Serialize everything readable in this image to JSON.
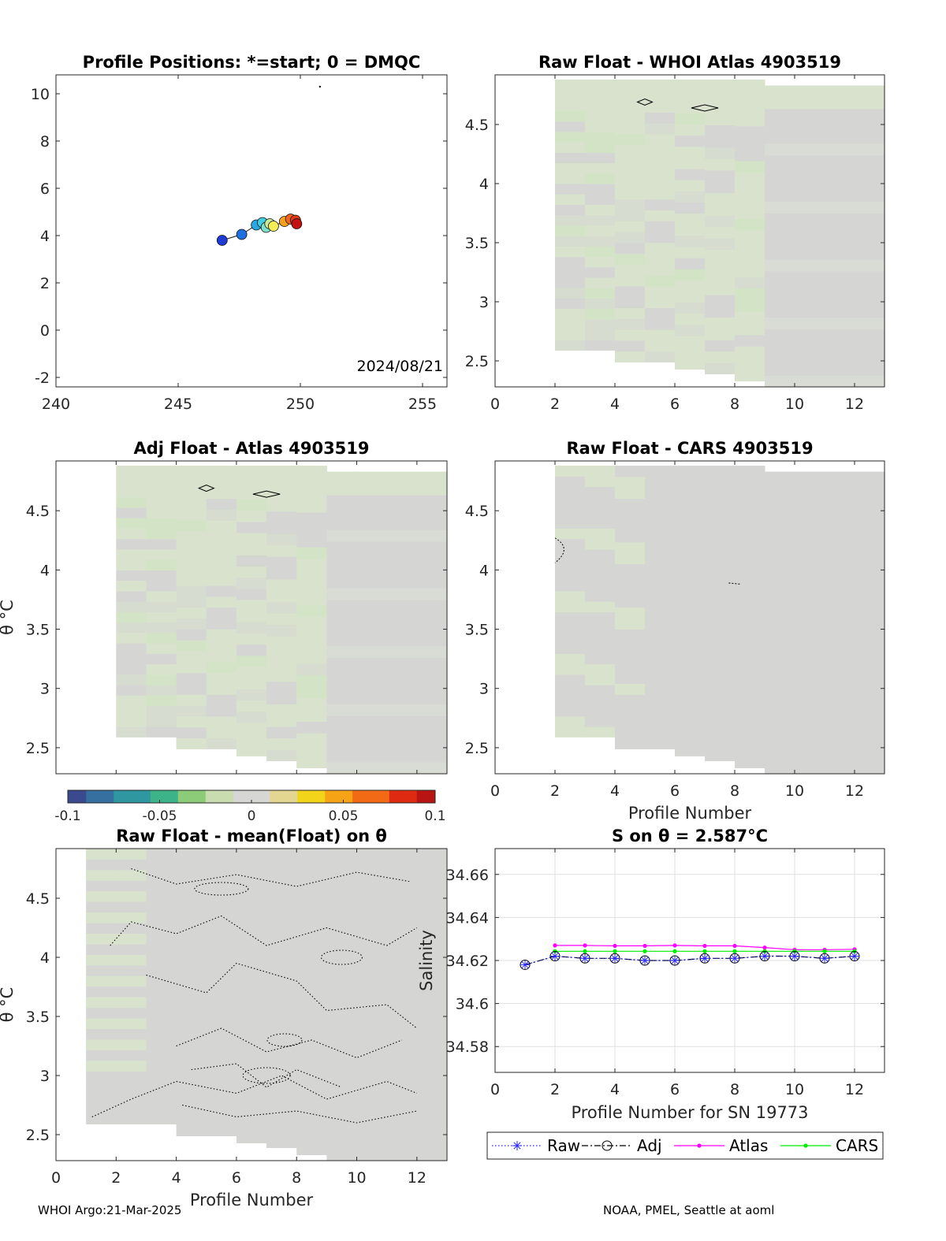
{
  "footer": {
    "left": "WHOI Argo:21-Mar-2025",
    "right": "NOAA, PMEL, Seattle at aoml"
  },
  "colors": {
    "field_gray": "#d5d6d4",
    "field_green": "#d9e2cd",
    "field_green2": "#d3e4c6",
    "atlas_line": "#ff00ff",
    "cars_line": "#00ee00",
    "raw_marker": "#2a2aff"
  },
  "chart_data": [
    {
      "id": "positions",
      "type": "scatter",
      "title": "Profile Positions: *=start; 0 = DMQC",
      "xlim": [
        240,
        256
      ],
      "ylim": [
        -2.4,
        10.8
      ],
      "xticks": [
        "240",
        "245",
        "250",
        "255"
      ],
      "yticks": [
        "-2",
        "0",
        "2",
        "4",
        "6",
        "8",
        "10"
      ],
      "annotation": "2024/08/21",
      "points": [
        {
          "lon": 246.8,
          "lat": 3.8,
          "color": "#1f3bd6"
        },
        {
          "lon": 247.6,
          "lat": 4.05,
          "color": "#1f6fe0"
        },
        {
          "lon": 248.2,
          "lat": 4.45,
          "color": "#27a9e8"
        },
        {
          "lon": 248.45,
          "lat": 4.55,
          "color": "#3fd0e6"
        },
        {
          "lon": 248.6,
          "lat": 4.35,
          "color": "#7ee0cf"
        },
        {
          "lon": 248.75,
          "lat": 4.5,
          "color": "#c9e89a"
        },
        {
          "lon": 248.9,
          "lat": 4.4,
          "color": "#f3ee58"
        },
        {
          "lon": 249.35,
          "lat": 4.6,
          "color": "#f7a21c"
        },
        {
          "lon": 249.6,
          "lat": 4.7,
          "color": "#f2641c"
        },
        {
          "lon": 249.8,
          "lat": 4.65,
          "color": "#e23a16"
        },
        {
          "lon": 249.85,
          "lat": 4.5,
          "color": "#c41010"
        }
      ],
      "grid": false
    },
    {
      "id": "raw-whoi",
      "type": "heatmap",
      "title": "Raw Float - WHOI Atlas  4903519",
      "xlim": [
        0,
        13
      ],
      "ylim": [
        2.28,
        4.92
      ],
      "xticks": [
        "0",
        "2",
        "4",
        "6",
        "8",
        "10",
        "12"
      ],
      "yticks": [
        "2.5",
        "3",
        "3.5",
        "4",
        "4.5"
      ],
      "contours": [
        {
          "x": 5,
          "y": 4.69,
          "w": 0.5
        },
        {
          "x": 7,
          "y": 4.64,
          "w": 0.9
        }
      ]
    },
    {
      "id": "adj-atlas",
      "type": "heatmap",
      "title": "Adj Float - Atlas  4903519",
      "ylabel": "θ °C",
      "xlim": [
        0,
        13
      ],
      "ylim": [
        2.28,
        4.92
      ],
      "yticks": [
        "2.5",
        "3",
        "3.5",
        "4",
        "4.5"
      ],
      "contours": [
        {
          "x": 5,
          "y": 4.69,
          "w": 0.5
        },
        {
          "x": 7,
          "y": 4.64,
          "w": 0.9
        }
      ]
    },
    {
      "id": "raw-cars",
      "type": "heatmap",
      "title": "Raw Float - CARS  4903519",
      "xlabel": "Profile Number",
      "xlim": [
        0,
        13
      ],
      "ylim": [
        2.28,
        4.92
      ],
      "xticks": [
        "0",
        "2",
        "4",
        "6",
        "8",
        "10",
        "12"
      ],
      "yticks": [
        "2.5",
        "3",
        "3.5",
        "4",
        "4.5"
      ]
    },
    {
      "id": "colorbar",
      "type": "colorbar",
      "range": [
        -0.1,
        0.1
      ],
      "ticks": [
        "-0.1",
        "-0.05",
        "0",
        "0.05",
        "0.1"
      ]
    },
    {
      "id": "raw-mean",
      "type": "heatmap",
      "title": "Raw Float - mean(Float) on θ",
      "ylabel": "θ °C",
      "xlabel": "Profile Number",
      "xlim": [
        0,
        13
      ],
      "ylim": [
        2.28,
        4.92
      ],
      "xticks": [
        "0",
        "2",
        "4",
        "6",
        "8",
        "10",
        "12"
      ],
      "yticks": [
        "2.5",
        "3",
        "3.5",
        "4",
        "4.5"
      ]
    },
    {
      "id": "salinity",
      "type": "line",
      "title": "S on θ = 2.587°C",
      "xlabel": "Profile Number for SN 19773",
      "ylabel": "Salinity",
      "xlim": [
        0,
        13
      ],
      "ylim": [
        34.568,
        34.672
      ],
      "xticks": [
        "0",
        "2",
        "4",
        "6",
        "8",
        "10",
        "12"
      ],
      "yticks": [
        "34.58",
        "34.6",
        "34.62",
        "34.64",
        "34.66"
      ],
      "grid": true,
      "legend": "bottom",
      "x": [
        1,
        2,
        3,
        4,
        5,
        6,
        7,
        8,
        9,
        10,
        11,
        12
      ],
      "series": [
        {
          "name": "Raw",
          "style": "dotted",
          "marker": "star",
          "color": "#2a2aff",
          "values": [
            34.618,
            34.622,
            34.621,
            34.621,
            34.62,
            34.62,
            34.621,
            34.621,
            34.622,
            34.622,
            34.621,
            34.622
          ]
        },
        {
          "name": "Adj",
          "style": "dashdot",
          "marker": "circle",
          "color": "#000000",
          "values": [
            34.618,
            34.622,
            34.621,
            34.621,
            34.62,
            34.62,
            34.621,
            34.621,
            34.622,
            34.622,
            34.621,
            34.622
          ]
        },
        {
          "name": "Atlas",
          "style": "solid",
          "marker": "dot",
          "color": "#ff00ff",
          "values": [
            null,
            34.627,
            34.627,
            34.6268,
            34.6268,
            34.627,
            34.6268,
            34.6268,
            34.626,
            34.625,
            34.625,
            34.6252
          ]
        },
        {
          "name": "CARS",
          "style": "solid",
          "marker": "dot",
          "color": "#00ee00",
          "values": [
            null,
            34.6243,
            34.6243,
            34.6243,
            34.6243,
            34.6243,
            34.6243,
            34.6243,
            34.6243,
            34.6243,
            34.6243,
            34.6243
          ]
        }
      ]
    }
  ]
}
